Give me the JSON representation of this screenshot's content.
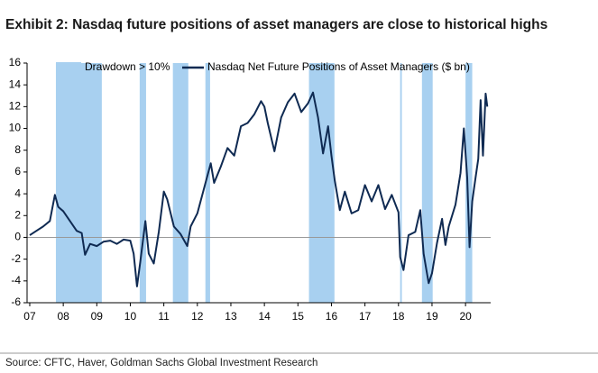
{
  "chart_data": {
    "type": "line",
    "title": "Exhibit 2: Nasdaq future positions of asset managers are close to historical highs",
    "source": "Source: CFTC, Haver, Goldman Sachs Global Investment Research",
    "bands": {
      "name": "Drawdown > 10%",
      "color": "#a8d0f0",
      "ranges": [
        [
          2007.78,
          2009.15
        ],
        [
          2010.28,
          2010.47
        ],
        [
          2011.27,
          2011.73
        ],
        [
          2012.24,
          2012.38
        ],
        [
          2015.33,
          2016.09
        ],
        [
          2018.05,
          2018.1
        ],
        [
          2018.7,
          2019.02
        ],
        [
          2020.0,
          2020.2
        ]
      ]
    },
    "x": [
      2007.0,
      2007.2,
      2007.4,
      2007.6,
      2007.75,
      2007.85,
      2008.0,
      2008.2,
      2008.4,
      2008.55,
      2008.65,
      2008.8,
      2009.0,
      2009.2,
      2009.4,
      2009.6,
      2009.8,
      2010.0,
      2010.1,
      2010.2,
      2010.3,
      2010.45,
      2010.55,
      2010.7,
      2010.85,
      2011.0,
      2011.1,
      2011.3,
      2011.5,
      2011.7,
      2011.8,
      2012.0,
      2012.2,
      2012.4,
      2012.5,
      2012.7,
      2012.9,
      2013.1,
      2013.3,
      2013.5,
      2013.7,
      2013.9,
      2014.0,
      2014.1,
      2014.3,
      2014.5,
      2014.7,
      2014.9,
      2015.1,
      2015.3,
      2015.45,
      2015.6,
      2015.75,
      2015.9,
      2016.0,
      2016.1,
      2016.25,
      2016.4,
      2016.6,
      2016.8,
      2017.0,
      2017.2,
      2017.4,
      2017.6,
      2017.8,
      2018.0,
      2018.05,
      2018.15,
      2018.3,
      2018.5,
      2018.65,
      2018.75,
      2018.9,
      2019.0,
      2019.15,
      2019.3,
      2019.4,
      2019.5,
      2019.7,
      2019.85,
      2019.95,
      2020.05,
      2020.12,
      2020.2,
      2020.3,
      2020.38,
      2020.45,
      2020.52,
      2020.6,
      2020.65
    ],
    "series": [
      {
        "name": "Nasdaq Net Future Positions of Asset Managers ($ bn)",
        "color": "#0f2a52",
        "values": [
          0.2,
          0.6,
          1.0,
          1.5,
          3.9,
          2.8,
          2.4,
          1.5,
          0.6,
          0.4,
          -1.6,
          -0.6,
          -0.8,
          -0.4,
          -0.3,
          -0.6,
          -0.2,
          -0.3,
          -1.5,
          -4.5,
          -2.2,
          1.5,
          -1.5,
          -2.4,
          0.5,
          4.2,
          3.5,
          1.0,
          0.3,
          -0.8,
          1.0,
          2.2,
          4.5,
          6.8,
          5.0,
          6.5,
          8.2,
          7.5,
          10.2,
          10.5,
          11.3,
          12.5,
          12.0,
          10.5,
          7.9,
          11.0,
          12.4,
          13.2,
          11.5,
          12.3,
          13.3,
          11.0,
          7.7,
          10.2,
          7.5,
          5.2,
          2.5,
          4.2,
          2.2,
          2.5,
          4.8,
          3.3,
          4.8,
          2.6,
          3.9,
          2.3,
          -1.8,
          -3.0,
          0.2,
          0.5,
          2.5,
          -1.5,
          -4.2,
          -3.3,
          -0.5,
          1.7,
          -0.7,
          1.0,
          3.0,
          5.9,
          10.0,
          5.5,
          -0.9,
          3.3,
          5.5,
          7.2,
          12.6,
          7.5,
          13.2,
          12.0
        ]
      }
    ],
    "xlim": [
      2006.92,
      2020.75
    ],
    "xticks": [
      {
        "value": 2007,
        "label": "07"
      },
      {
        "value": 2008,
        "label": "08"
      },
      {
        "value": 2009,
        "label": "09"
      },
      {
        "value": 2010,
        "label": "10"
      },
      {
        "value": 2011,
        "label": "11"
      },
      {
        "value": 2012,
        "label": "12"
      },
      {
        "value": 2013,
        "label": "13"
      },
      {
        "value": 2014,
        "label": "14"
      },
      {
        "value": 2015,
        "label": "15"
      },
      {
        "value": 2016,
        "label": "16"
      },
      {
        "value": 2017,
        "label": "17"
      },
      {
        "value": 2018,
        "label": "18"
      },
      {
        "value": 2019,
        "label": "19"
      },
      {
        "value": 2020,
        "label": "20"
      }
    ],
    "ylim": [
      -6,
      16
    ],
    "yticks": [
      -6,
      -4,
      -2,
      0,
      2,
      4,
      6,
      8,
      10,
      12,
      14,
      16
    ],
    "zero_line": true
  }
}
